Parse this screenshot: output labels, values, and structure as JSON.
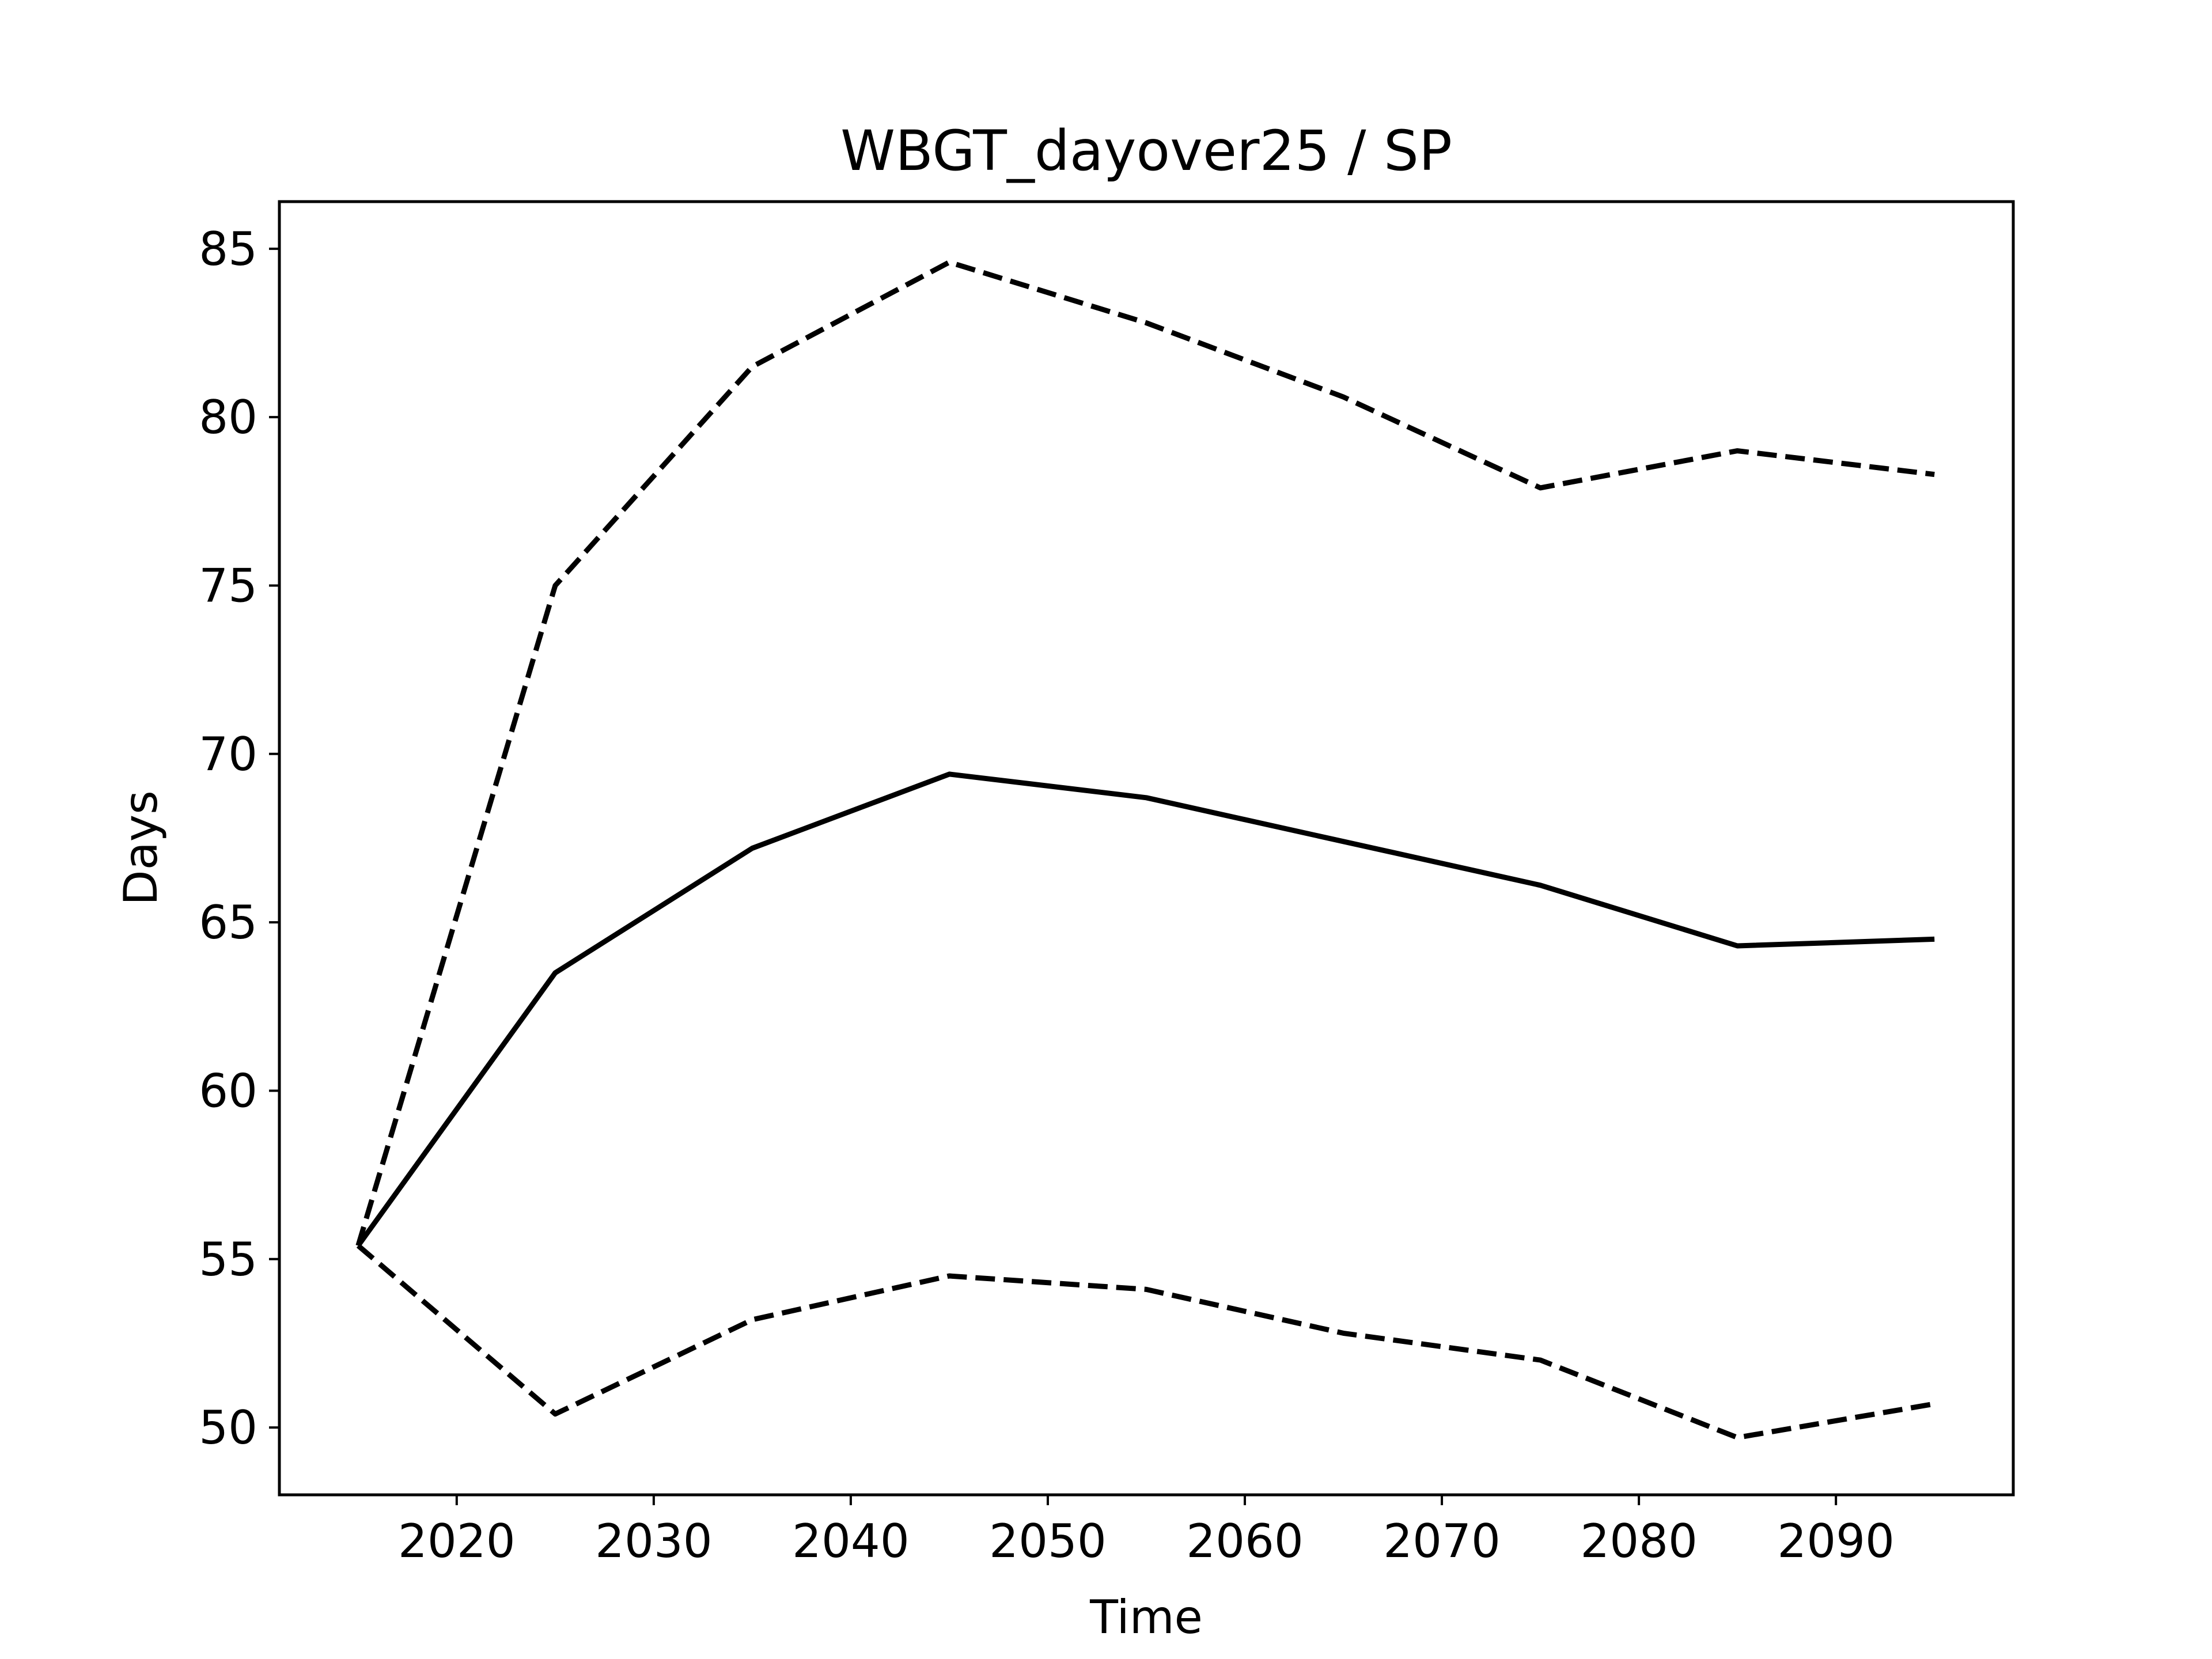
{
  "chart_data": {
    "type": "line",
    "title": "WBGT_dayover25 / SP",
    "xlabel": "Time",
    "ylabel": "Days",
    "xlim": [
      2011,
      2099
    ],
    "ylim": [
      48,
      86.4
    ],
    "xticks": [
      2020,
      2030,
      2040,
      2050,
      2060,
      2070,
      2080,
      2090
    ],
    "yticks": [
      50,
      55,
      60,
      65,
      70,
      75,
      80,
      85
    ],
    "grid": false,
    "legend": "none",
    "x": [
      2015,
      2025,
      2035,
      2045,
      2055,
      2065,
      2075,
      2085,
      2095
    ],
    "series": [
      {
        "style": "dashed",
        "color": "#000000",
        "values": [
          55.4,
          75.0,
          81.5,
          84.6,
          82.8,
          80.6,
          77.9,
          79.0,
          78.3
        ]
      },
      {
        "style": "solid",
        "color": "#000000",
        "values": [
          55.4,
          63.5,
          67.2,
          69.4,
          68.7,
          67.4,
          66.1,
          64.3,
          64.5
        ]
      },
      {
        "style": "dashed",
        "color": "#000000",
        "values": [
          55.4,
          50.4,
          53.2,
          54.5,
          54.1,
          52.8,
          52.0,
          49.7,
          50.7
        ]
      }
    ]
  }
}
